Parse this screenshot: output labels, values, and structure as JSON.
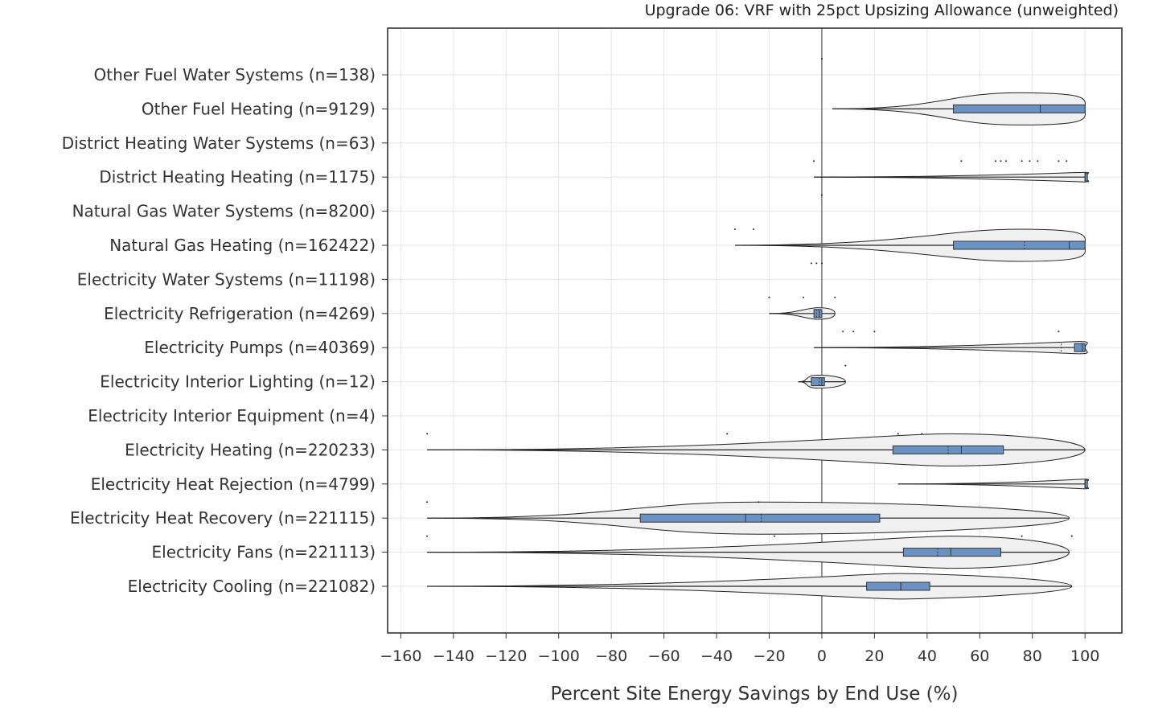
{
  "chart_data": {
    "type": "violin",
    "title": "Upgrade 06: VRF with 25pct Upsizing Allowance (unweighted)",
    "xlabel": "Percent Site Energy Savings by End Use (%)",
    "ylabel": "",
    "xlim": [
      -165,
      114
    ],
    "xticks": [
      -160,
      -140,
      -120,
      -100,
      -80,
      -60,
      -40,
      -20,
      0,
      20,
      40,
      60,
      80,
      100
    ],
    "grid": true,
    "categories": [
      {
        "label": "Other Fuel Water Systems  (n=138)",
        "box": null,
        "violin": null,
        "points": [
          0
        ]
      },
      {
        "label": "Other Fuel Heating  (n=9129)",
        "box": {
          "q1": 50,
          "median": 83,
          "q3": 100,
          "mean": 83
        },
        "violin": {
          "min": 4,
          "max": 100
        },
        "points": []
      },
      {
        "label": "District Heating Water Systems  (n=63)",
        "box": null,
        "violin": null,
        "points": []
      },
      {
        "label": "District Heating Heating  (n=1175)",
        "box": {
          "q1": 100,
          "median": 100,
          "q3": 100,
          "mean": 100
        },
        "violin": {
          "min": -3,
          "max": 100
        },
        "points": [
          -3,
          53,
          66,
          68,
          70,
          76,
          79,
          82,
          90,
          93
        ]
      },
      {
        "label": "Natural Gas Water Systems  (n=8200)",
        "box": null,
        "violin": null,
        "points": [
          0
        ]
      },
      {
        "label": "Natural Gas Heating  (n=162422)",
        "box": {
          "q1": 50,
          "median": 94,
          "q3": 100,
          "mean": 77
        },
        "violin": {
          "min": -33,
          "max": 100
        },
        "points": [
          -33,
          -26
        ]
      },
      {
        "label": "Electricity Water Systems  (n=11198)",
        "box": null,
        "violin": null,
        "points": [
          -4,
          -2,
          0
        ]
      },
      {
        "label": "Electricity Refrigeration  (n=4269)",
        "box": {
          "q1": -3,
          "median": -1,
          "q3": 0,
          "mean": -2
        },
        "violin": {
          "min": -20,
          "max": 5
        },
        "points": [
          -20,
          -7,
          5
        ]
      },
      {
        "label": "Electricity Pumps  (n=40369)",
        "box": {
          "q1": 96,
          "median": 99,
          "q3": 100,
          "mean": 91
        },
        "violin": {
          "min": -3,
          "max": 100
        },
        "points": [
          8,
          12,
          20,
          90
        ]
      },
      {
        "label": "Electricity Interior Lighting  (n=12)",
        "box": {
          "q1": -4,
          "median": 0,
          "q3": 1,
          "mean": -1
        },
        "violin": {
          "min": -9,
          "max": 9
        },
        "points": [
          9
        ]
      },
      {
        "label": "Electricity Interior Equipment  (n=4)",
        "box": null,
        "violin": null,
        "points": []
      },
      {
        "label": "Electricity Heating  (n=220233)",
        "box": {
          "q1": 27,
          "median": 53,
          "q3": 69,
          "mean": 48
        },
        "violin": {
          "min": -150,
          "max": 100
        },
        "points": [
          -150,
          -36,
          29,
          38
        ]
      },
      {
        "label": "Electricity Heat Rejection  (n=4799)",
        "box": {
          "q1": 100,
          "median": 100,
          "q3": 100,
          "mean": 100
        },
        "violin": {
          "min": 29,
          "max": 100
        },
        "points": []
      },
      {
        "label": "Electricity Heat Recovery  (n=221115)",
        "box": {
          "q1": -69,
          "median": -29,
          "q3": 22,
          "mean": -23
        },
        "violin": {
          "min": -150,
          "max": 94
        },
        "points": [
          -150,
          -24
        ]
      },
      {
        "label": "Electricity Fans  (n=221113)",
        "box": {
          "q1": 31,
          "median": 49,
          "q3": 68,
          "mean": 44
        },
        "violin": {
          "min": -150,
          "max": 94
        },
        "points": [
          -150,
          -18,
          76,
          95
        ]
      },
      {
        "label": "Electricity Cooling  (n=221082)",
        "box": {
          "q1": 17,
          "median": 30,
          "q3": 41,
          "mean": 30
        },
        "violin": {
          "min": -150,
          "max": 95
        },
        "points": []
      }
    ]
  }
}
